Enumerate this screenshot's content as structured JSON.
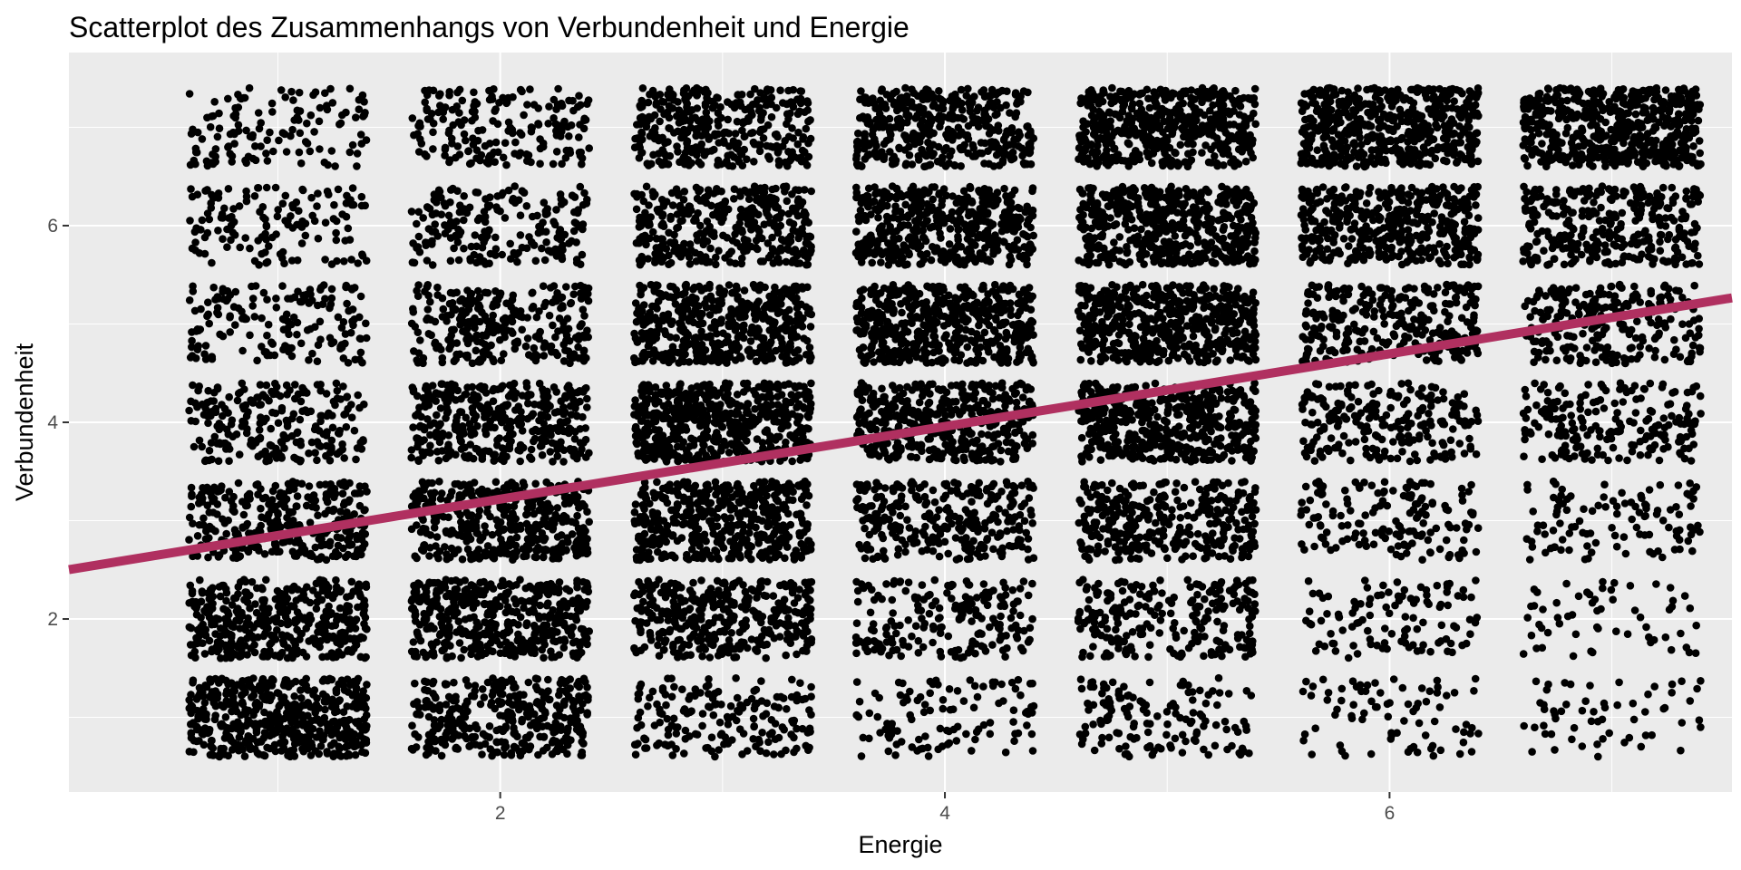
{
  "chart_data": {
    "type": "scatter",
    "title": "Scatterplot des Zusammenhangs von Verbundenheit und Energie",
    "xlabel": "Energie",
    "ylabel": "Verbundenheit",
    "xlim": [
      0.06,
      7.54
    ],
    "ylim": [
      0.24,
      7.76
    ],
    "x_ticks": [
      2,
      4,
      6
    ],
    "y_ticks": [
      2,
      4,
      6
    ],
    "grid": true,
    "jitter": {
      "width": 0.4,
      "height": 0.4
    },
    "point_color": "#000000",
    "panel_background": "#ebebeb",
    "grid_color": "#ffffff",
    "x_levels": [
      1,
      2,
      3,
      4,
      5,
      6,
      7
    ],
    "y_levels": [
      1,
      2,
      3,
      4,
      5,
      6,
      7
    ],
    "cell_counts": [
      [
        500,
        350,
        180,
        110,
        140,
        80,
        60
      ],
      [
        420,
        450,
        380,
        200,
        230,
        110,
        60
      ],
      [
        330,
        420,
        480,
        300,
        330,
        160,
        110
      ],
      [
        230,
        380,
        520,
        430,
        480,
        230,
        200
      ],
      [
        170,
        280,
        480,
        520,
        530,
        290,
        250
      ],
      [
        140,
        200,
        370,
        460,
        490,
        430,
        320
      ],
      [
        130,
        190,
        350,
        410,
        520,
        540,
        550
      ]
    ],
    "regression_line": {
      "color": "#b03060",
      "intercept": 2.48,
      "slope": 0.3694,
      "x_range": [
        0.06,
        7.54
      ]
    }
  }
}
